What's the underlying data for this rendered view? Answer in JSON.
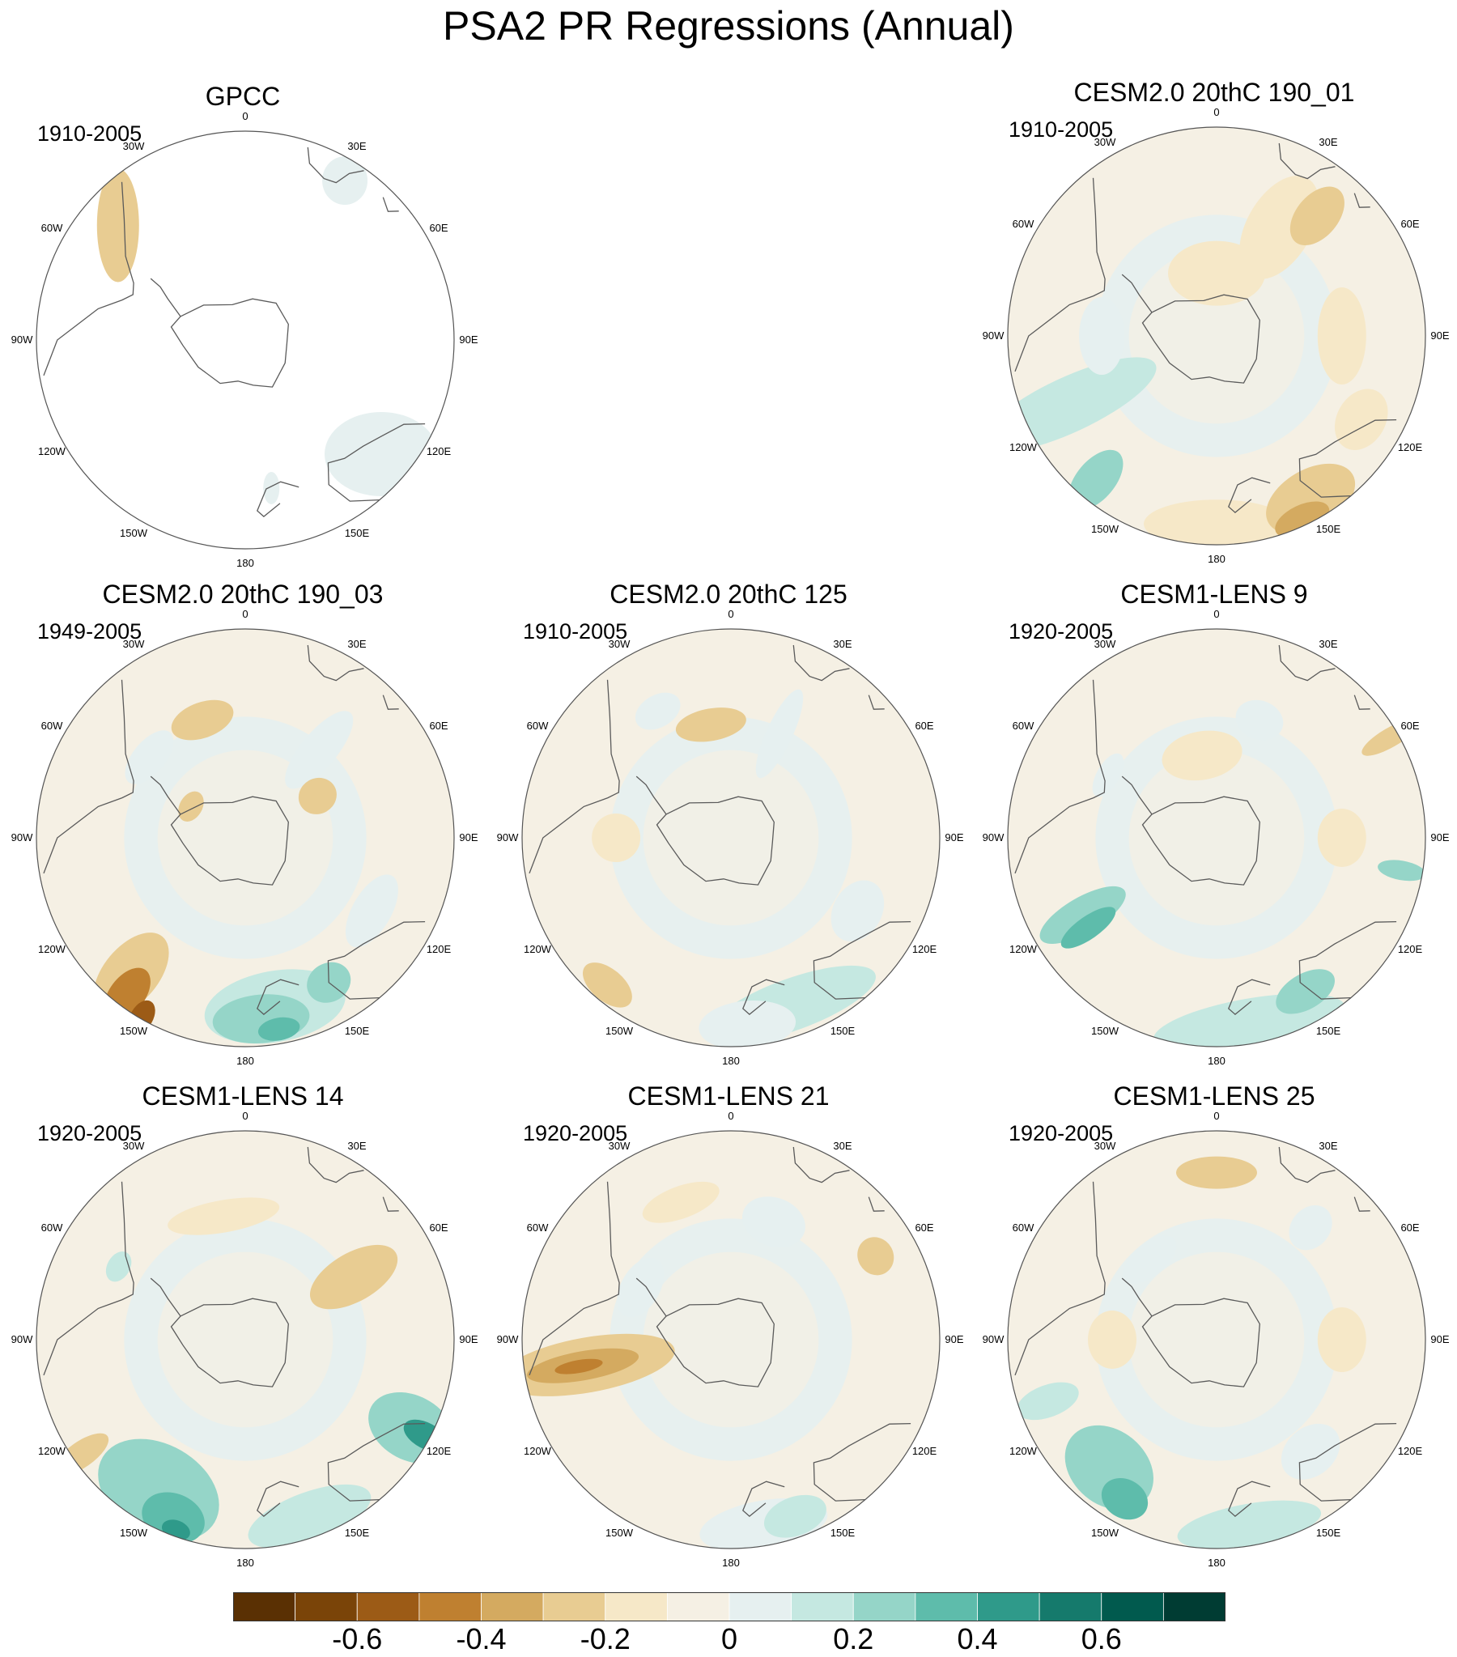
{
  "title": "PSA2 PR Regressions (Annual)",
  "lon_labels": [
    "0",
    "30E",
    "60E",
    "90E",
    "120E",
    "150E",
    "180",
    "150W",
    "120W",
    "90W",
    "60W",
    "30W"
  ],
  "colors": {
    "land_outline": "#5a5a5a",
    "circle": "#555555",
    "scale": [
      "#5a3003",
      "#7a4408",
      "#9c5b16",
      "#bf8030",
      "#d4aa60",
      "#e8cc92",
      "#f6e8c8",
      "#f5f0e4",
      "#e6f0f0",
      "#c5e8e1",
      "#95d5c8",
      "#5ebcab",
      "#2f9a8a",
      "#157a6c",
      "#015a4e",
      "#003c33"
    ]
  },
  "panels": [
    {
      "title": "GPCC",
      "period": "1910-2005",
      "field": "gpcc"
    },
    {
      "title": "CESM2.0 20thC 190_01",
      "period": "1910-2005",
      "field": "c01"
    },
    {
      "title": "CESM2.0 20thC 190_03",
      "period": "1949-2005",
      "field": "c03"
    },
    {
      "title": "CESM2.0 20thC 125",
      "period": "1910-2005",
      "field": "c125"
    },
    {
      "title": "CESM1-LENS 9",
      "period": "1920-2005",
      "field": "l9"
    },
    {
      "title": "CESM1-LENS 14",
      "period": "1920-2005",
      "field": "l14"
    },
    {
      "title": "CESM1-LENS 21",
      "period": "1920-2005",
      "field": "l21"
    },
    {
      "title": "CESM1-LENS 25",
      "period": "1920-2005",
      "field": "l25"
    }
  ],
  "colorbar": {
    "tick_labels": [
      "-0.6",
      "-0.4",
      "-0.2",
      "0",
      "0.2",
      "0.4",
      "0.6"
    ],
    "tick_values": [
      -0.6,
      -0.4,
      -0.2,
      0,
      0.2,
      0.4,
      0.6
    ],
    "min": -0.8,
    "max": 0.8,
    "step": 0.1
  }
}
